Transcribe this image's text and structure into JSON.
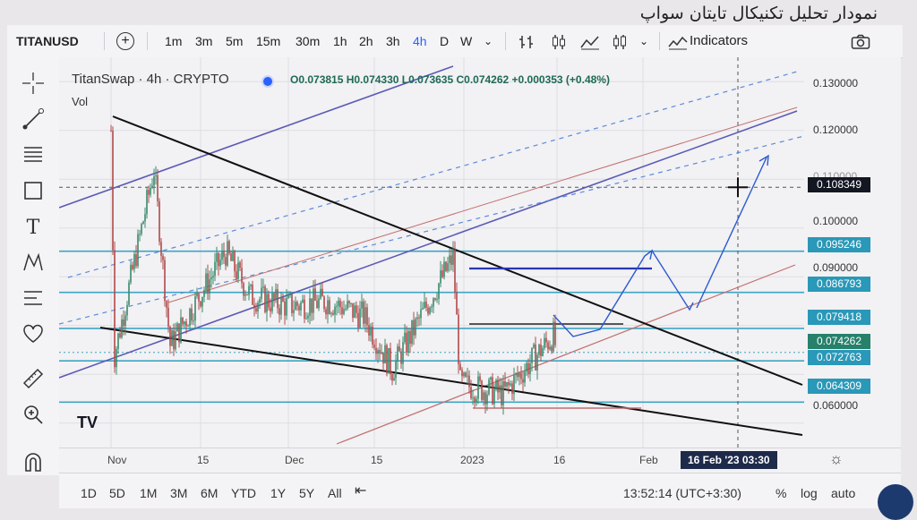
{
  "caption": "نمودار تحلیل تکنیکال تایتان سواپ",
  "toolbar": {
    "symbol": "TITANUSD",
    "add_label": "+",
    "intervals": [
      "1m",
      "3m",
      "5m",
      "15m",
      "30m",
      "1h",
      "2h",
      "3h",
      "4h",
      "D",
      "W"
    ],
    "active_interval": "4h",
    "indicators_label": "Indicators"
  },
  "legend": {
    "title": "TitanSwap · 4h · CRYPTO",
    "ohlc": "O0.073815 H0.074330 L0.073635 C0.074262 +0.000353 (+0.48%)",
    "volume_label": "Vol"
  },
  "price_axis": {
    "labels": [
      "0.130000",
      "0.120000",
      "0.110000",
      "0.100000",
      "0.090000",
      "0.060000"
    ],
    "tags": [
      {
        "text": "0.108349",
        "color": "#131722"
      },
      {
        "text": "0.095246",
        "color": "#2a98b8"
      },
      {
        "text": "0.086793",
        "color": "#2a98b8"
      },
      {
        "text": "0.079418",
        "color": "#2a98b8"
      },
      {
        "text": "0.074262",
        "color": "#26806a"
      },
      {
        "text": "0.072763",
        "color": "#2a98b8"
      },
      {
        "text": "0.064309",
        "color": "#2a98b8"
      }
    ]
  },
  "time_axis": {
    "labels": [
      "Nov",
      "15",
      "Dec",
      "15",
      "2023",
      "16",
      "Feb"
    ],
    "crosshair_label": "16 Feb '23   03:30"
  },
  "bottombar": {
    "ranges": [
      "1D",
      "5D",
      "1M",
      "3M",
      "6M",
      "YTD",
      "1Y",
      "5Y",
      "All"
    ],
    "clock": "13:52:14 (UTC+3:30)",
    "percent_label": "%",
    "log_label": "log",
    "auto_label": "auto"
  },
  "chart_data": {
    "type": "candlestick",
    "title": "TitanSwap · 4h · CRYPTO",
    "x": [
      "Nov",
      "15",
      "Dec",
      "15",
      "2023",
      "16",
      "Feb"
    ],
    "ylim": [
      0.055,
      0.135
    ],
    "close_path": [
      [
        "Nov",
        0.12
      ],
      [
        "Nov",
        0.074
      ],
      [
        "Nov",
        0.112
      ],
      [
        "15",
        0.076
      ],
      [
        "15",
        0.095
      ],
      [
        "15",
        0.086
      ],
      [
        "Dec",
        0.084
      ],
      [
        "Dec",
        0.085
      ],
      [
        "15",
        0.082
      ],
      [
        "15",
        0.071
      ],
      [
        "2023",
        0.094
      ],
      [
        "2023",
        0.068
      ],
      [
        "2023",
        0.066
      ],
      [
        "16",
        0.078
      ],
      [
        "16",
        0.074262
      ]
    ],
    "horizontal_levels": [
      0.095246,
      0.086793,
      0.079418,
      0.072763,
      0.064309
    ],
    "crosshair_price": 0.108349,
    "last_price": 0.074262,
    "grid": true
  }
}
